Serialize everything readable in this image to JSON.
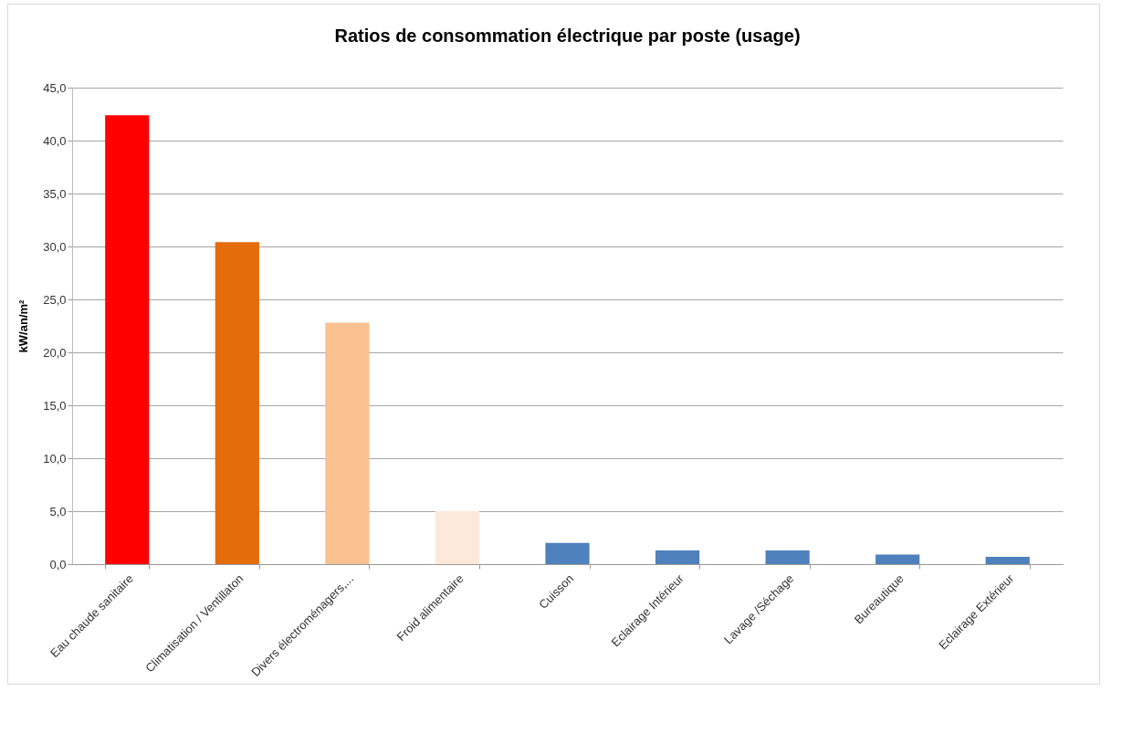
{
  "chart_data": {
    "type": "bar",
    "title": "Ratios de consommation électrique par poste (usage)",
    "ylabel": "kW/an/m²",
    "categories": [
      "Eau chaude sanitaire",
      "Climatisation / Ventillaton",
      "Divers électroménagers,...",
      "Froid alimentaire",
      "Cuisson",
      "Eclairage Intérieur",
      "Lavage /Séchage",
      "Bureautique",
      "Eclairage Extérieur"
    ],
    "values": [
      42.4,
      30.4,
      22.8,
      5.0,
      2.0,
      1.3,
      1.3,
      0.9,
      0.7
    ],
    "colors": [
      "#ff0000",
      "#e46c0a",
      "#fac090",
      "#fde9d9",
      "#4f81bd",
      "#4f81bd",
      "#4f81bd",
      "#4f81bd",
      "#4f81bd"
    ],
    "ylim": [
      0,
      45
    ],
    "yticks": [
      {
        "value": 0,
        "label": "0,0"
      },
      {
        "value": 5,
        "label": "5,0"
      },
      {
        "value": 10,
        "label": "10,0"
      },
      {
        "value": 15,
        "label": "15,0"
      },
      {
        "value": 20,
        "label": "20,0"
      },
      {
        "value": 25,
        "label": "25,0"
      },
      {
        "value": 30,
        "label": "30,0"
      },
      {
        "value": 35,
        "label": "35,0"
      },
      {
        "value": 40,
        "label": "40,0"
      },
      {
        "value": 45,
        "label": "45,0"
      }
    ],
    "grid": "y"
  }
}
